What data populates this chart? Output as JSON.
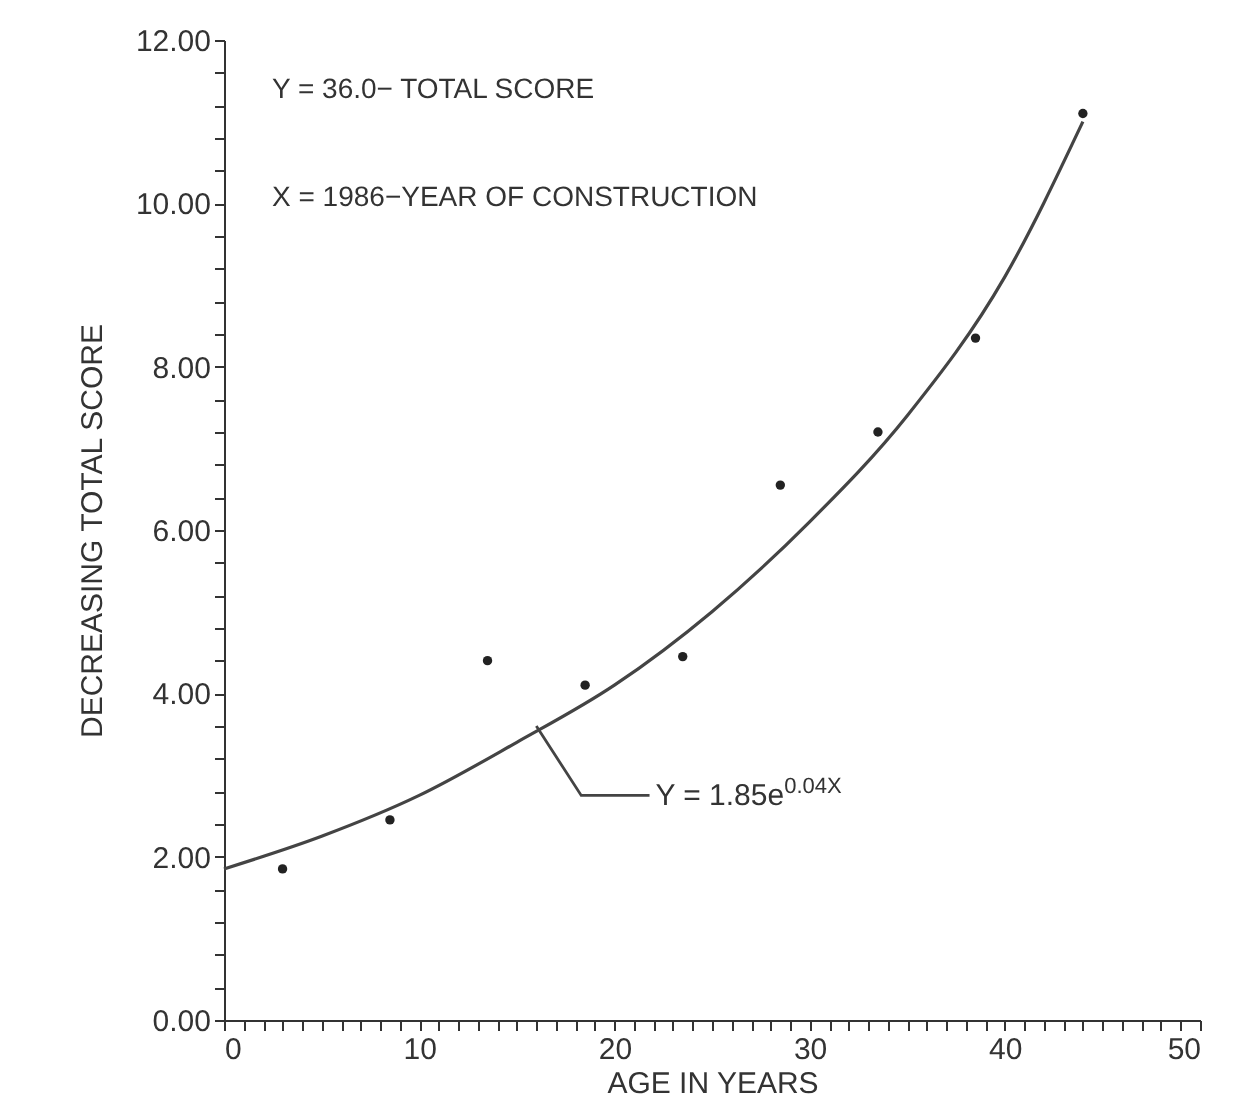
{
  "chart_data": {
    "type": "scatter",
    "xlabel": "AGE IN YEARS",
    "ylabel": "DECREASING TOTAL SCORE",
    "xlim": [
      0,
      50
    ],
    "ylim": [
      0,
      12
    ],
    "xticks": [
      0,
      {
        "value": 1,
        "label": null
      },
      {
        "value": 2,
        "label": null
      },
      {
        "value": 3,
        "label": null
      },
      {
        "value": 4,
        "label": null
      },
      {
        "value": 5,
        "label": null
      },
      {
        "value": 6,
        "label": null
      },
      {
        "value": 7,
        "label": null
      },
      {
        "value": 8,
        "label": null
      },
      {
        "value": 9,
        "label": null
      },
      10,
      {
        "value": 11,
        "label": null
      },
      {
        "value": 12,
        "label": null
      },
      {
        "value": 13,
        "label": null
      },
      {
        "value": 14,
        "label": null
      },
      {
        "value": 15,
        "label": null
      },
      {
        "value": 16,
        "label": null
      },
      {
        "value": 17,
        "label": null
      },
      {
        "value": 18,
        "label": null
      },
      {
        "value": 19,
        "label": null
      },
      20,
      {
        "value": 21,
        "label": null
      },
      {
        "value": 22,
        "label": null
      },
      {
        "value": 23,
        "label": null
      },
      {
        "value": 24,
        "label": null
      },
      {
        "value": 25,
        "label": null
      },
      {
        "value": 26,
        "label": null
      },
      {
        "value": 27,
        "label": null
      },
      {
        "value": 28,
        "label": null
      },
      {
        "value": 29,
        "label": null
      },
      30,
      {
        "value": 31,
        "label": null
      },
      {
        "value": 32,
        "label": null
      },
      {
        "value": 33,
        "label": null
      },
      {
        "value": 34,
        "label": null
      },
      {
        "value": 35,
        "label": null
      },
      {
        "value": 36,
        "label": null
      },
      {
        "value": 37,
        "label": null
      },
      {
        "value": 38,
        "label": null
      },
      {
        "value": 39,
        "label": null
      },
      40,
      {
        "value": 41,
        "label": null
      },
      {
        "value": 42,
        "label": null
      },
      {
        "value": 43,
        "label": null
      },
      {
        "value": 44,
        "label": null
      },
      {
        "value": 45,
        "label": null
      },
      {
        "value": 46,
        "label": null
      },
      {
        "value": 47,
        "label": null
      },
      {
        "value": 48,
        "label": null
      },
      {
        "value": 49,
        "label": null
      },
      50
    ],
    "yticks": [
      {
        "value": 0,
        "label": "0.00"
      },
      {
        "value": 0.4,
        "label": null
      },
      {
        "value": 0.8,
        "label": null
      },
      {
        "value": 1.2,
        "label": null
      },
      {
        "value": 1.6,
        "label": null
      },
      {
        "value": 2,
        "label": "2.00"
      },
      {
        "value": 2.4,
        "label": null
      },
      {
        "value": 2.8,
        "label": null
      },
      {
        "value": 3.2,
        "label": null
      },
      {
        "value": 3.6,
        "label": null
      },
      {
        "value": 4,
        "label": "4.00"
      },
      {
        "value": 4.4,
        "label": null
      },
      {
        "value": 4.8,
        "label": null
      },
      {
        "value": 5.2,
        "label": null
      },
      {
        "value": 5.6,
        "label": null
      },
      {
        "value": 6,
        "label": "6.00"
      },
      {
        "value": 6.4,
        "label": null
      },
      {
        "value": 6.8,
        "label": null
      },
      {
        "value": 7.2,
        "label": null
      },
      {
        "value": 7.6,
        "label": null
      },
      {
        "value": 8,
        "label": "8.00"
      },
      {
        "value": 8.4,
        "label": null
      },
      {
        "value": 8.8,
        "label": null
      },
      {
        "value": 9.2,
        "label": null
      },
      {
        "value": 9.6,
        "label": null
      },
      {
        "value": 10,
        "label": "10.00"
      },
      {
        "value": 10.4,
        "label": null
      },
      {
        "value": 10.8,
        "label": null
      },
      {
        "value": 11.2,
        "label": null
      },
      {
        "value": 11.6,
        "label": null
      },
      {
        "value": 12,
        "label": "12.00"
      }
    ],
    "grid": false,
    "series": [
      {
        "color": "#222222",
        "marker": "circle",
        "x": [
          3,
          8.5,
          13.5,
          18.5,
          23.5,
          28.5,
          33.5,
          38.5,
          44
        ],
        "values": [
          1.85,
          2.45,
          4.4,
          4.1,
          4.45,
          6.55,
          7.2,
          8.35,
          11.1
        ]
      },
      {
        "type": "line",
        "marker": "none",
        "color": "#444444",
        "x": [
          0,
          5,
          10,
          15,
          20,
          25,
          30,
          35,
          40,
          44
        ],
        "values": [
          1.85,
          2.25,
          2.75,
          3.4,
          4.1,
          5.0,
          6.1,
          7.4,
          9.1,
          11.0
        ]
      }
    ],
    "annotations": [
      "Y = 36.0− TOTAL SCORE",
      "X = 1986−YEAR OF CONSTRUCTION",
      {
        "text": "Y = 1.85e$^{0.04X}$",
        "x": 16,
        "y": 3.6
      }
    ]
  }
}
